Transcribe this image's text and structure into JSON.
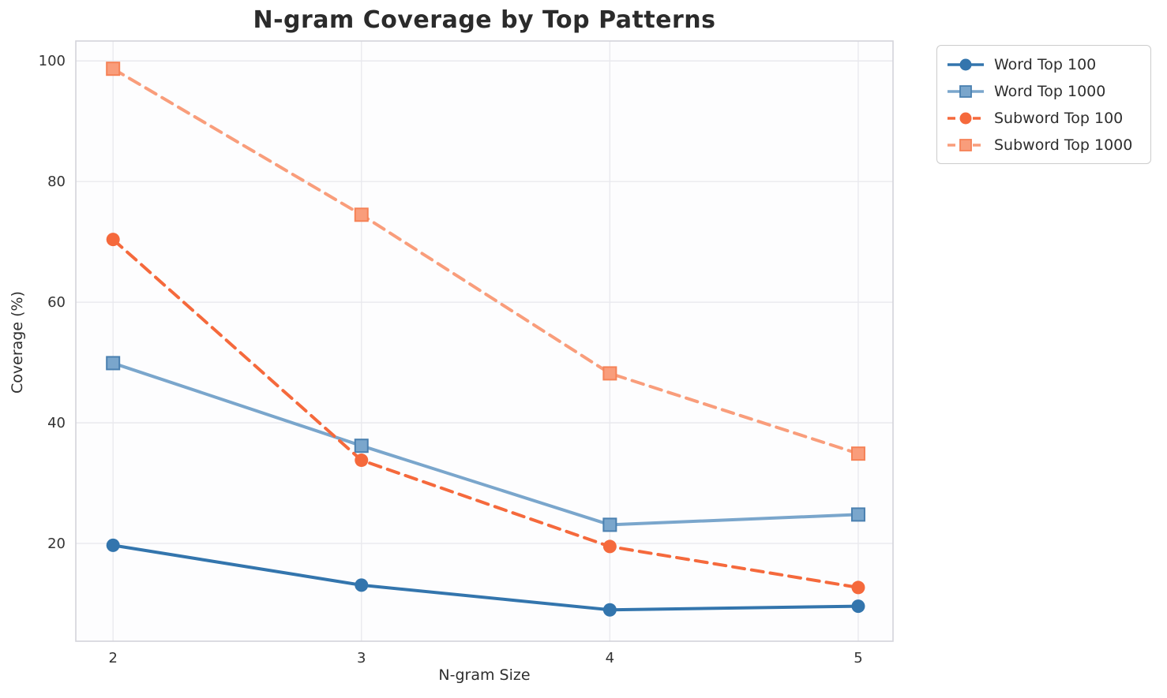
{
  "chart_data": {
    "type": "line",
    "title": "N-gram Coverage by Top Patterns",
    "xlabel": "N-gram Size",
    "ylabel": "Coverage (%)",
    "x": [
      2,
      3,
      4,
      5
    ],
    "x_tick_labels": [
      "2",
      "3",
      "4",
      "5"
    ],
    "y_ticks": [
      20,
      40,
      60,
      80,
      100
    ],
    "xlim": [
      1.85,
      5.14
    ],
    "ylim": [
      3.8,
      103.3
    ],
    "grid": true,
    "legend_position": "outside-top-right",
    "series": [
      {
        "name": "Word Top 100",
        "values": [
          19.7,
          13.1,
          9.0,
          9.6
        ],
        "color": "#3375ad",
        "marker_edge": "#3375ad",
        "style": "solid",
        "marker": "circle"
      },
      {
        "name": "Word Top 1000",
        "values": [
          49.9,
          36.2,
          23.1,
          24.8
        ],
        "color": "#7aa6cc",
        "marker_edge": "#4a80b0",
        "style": "solid",
        "marker": "square"
      },
      {
        "name": "Subword Top 100",
        "values": [
          70.4,
          33.8,
          19.5,
          12.7
        ],
        "color": "#f5693c",
        "marker_edge": "#f5693c",
        "style": "dashed",
        "marker": "circle"
      },
      {
        "name": "Subword Top 1000",
        "values": [
          98.7,
          74.5,
          48.2,
          34.9
        ],
        "color": "#f99d7b",
        "marker_edge": "#f58257",
        "style": "dashed",
        "marker": "square"
      }
    ],
    "colors": {
      "grid": "#e9e9ee",
      "axis_border": "#d4d4da",
      "tick_label": "#333333",
      "plot_background": "#fdfdfe"
    }
  }
}
